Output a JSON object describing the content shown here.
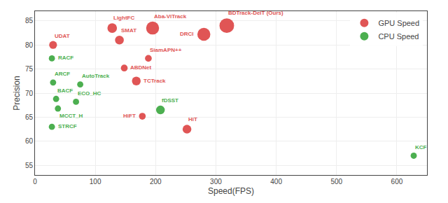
{
  "chart_data": {
    "type": "scatter",
    "xlabel": "Speed(FPS)",
    "ylabel": "Precision",
    "xlim": [
      0,
      650
    ],
    "ylim": [
      53,
      87
    ],
    "xticks": [
      0,
      100,
      200,
      300,
      400,
      500,
      600
    ],
    "yticks": [
      55,
      60,
      65,
      70,
      75,
      80,
      85
    ],
    "grid": true,
    "legend": "upper right",
    "series": [
      {
        "name": "GPU Speed",
        "color": "#e05555",
        "labels": [
          "UDAT",
          "LightFC",
          "SMAT",
          "ABDNet",
          "TCTrack",
          "HiFT",
          "SiamAPN++",
          "Aba-ViTrack",
          "HiT",
          "DRCl",
          "BDTrack-DeiT (Ours)"
        ],
        "x": [
          30,
          128,
          140,
          148,
          168,
          178,
          188,
          195,
          252,
          280,
          318
        ],
        "values": [
          80.0,
          83.5,
          81.0,
          75.2,
          72.5,
          65.2,
          77.2,
          83.5,
          62.5,
          82.2,
          84.0
        ],
        "sizes": [
          80,
          120,
          100,
          60,
          100,
          60,
          60,
          220,
          100,
          220,
          280
        ]
      },
      {
        "name": "CPU Speed",
        "color": "#4caf50",
        "labels": [
          "RACF",
          "ARCF",
          "BACF",
          "MCCT_H",
          "STRCF",
          "AutoTrack",
          "ECO_HC",
          "fDSST",
          "KCF"
        ],
        "x": [
          28,
          30,
          35,
          38,
          28,
          75,
          68,
          208,
          628
        ],
        "values": [
          77.2,
          72.2,
          68.8,
          66.8,
          63.0,
          71.8,
          68.2,
          66.5,
          57.0
        ],
        "sizes": [
          50,
          50,
          50,
          50,
          50,
          50,
          50,
          100,
          50
        ]
      }
    ]
  }
}
